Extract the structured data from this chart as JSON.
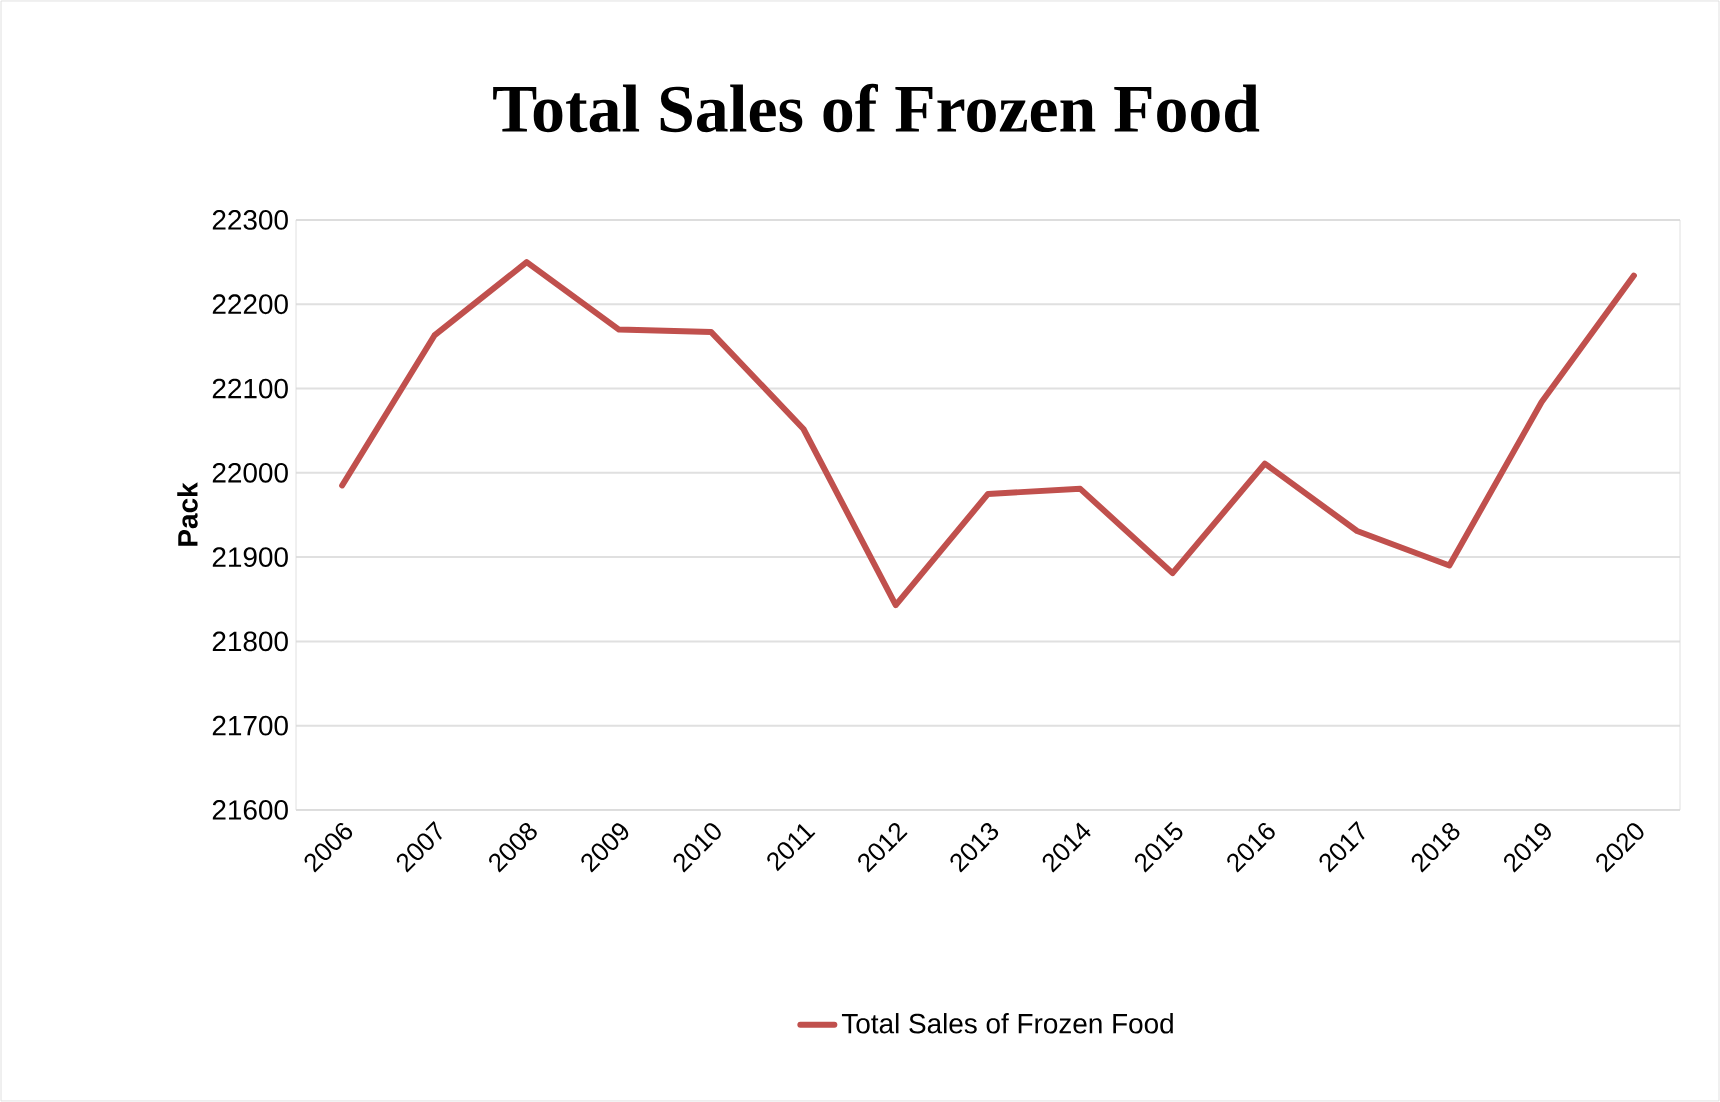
{
  "chart_data": {
    "type": "line",
    "title": "Total Sales of Frozen Food",
    "ylabel": "Pack",
    "categories": [
      "2006",
      "2007",
      "2008",
      "2009",
      "2010",
      "2011",
      "2012",
      "2013",
      "2014",
      "2015",
      "2016",
      "2017",
      "2018",
      "2019",
      "2020"
    ],
    "series": [
      {
        "name": "Total Sales of Frozen Food",
        "color": "#c0504d",
        "values": [
          21985,
          22163,
          22250,
          22170,
          22167,
          22052,
          21843,
          21975,
          21981,
          21881,
          22011,
          21931,
          21890,
          22084,
          22234
        ]
      }
    ],
    "ylim": [
      21600,
      22300
    ],
    "yticks": [
      21600,
      21700,
      21800,
      21900,
      22000,
      22100,
      22200,
      22300
    ],
    "grid": "y",
    "legend": "bottom",
    "marker": "none",
    "line_style": "solid"
  }
}
